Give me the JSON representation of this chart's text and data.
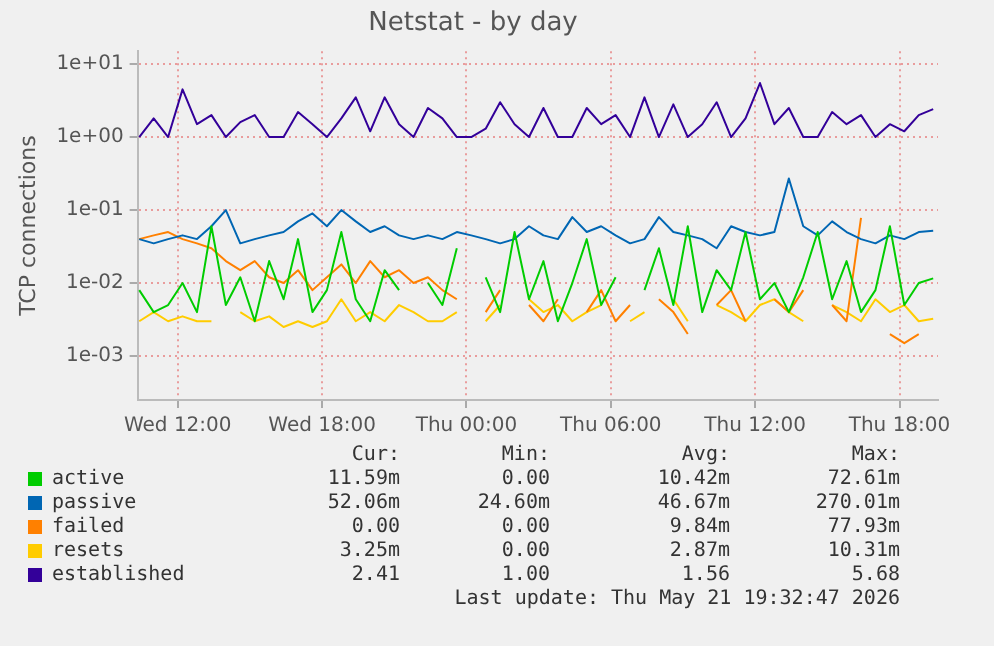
{
  "chart_data": {
    "type": "line",
    "title": "Netstat - by day",
    "ylabel": "TCP connections",
    "log": "y",
    "grid": true,
    "legend": "bottom",
    "marker": "none",
    "line_style": "solid",
    "xlim": [
      "2026-05-20T10:20",
      "2026-05-21T19:36"
    ],
    "xticks": [
      {
        "value": "2026-05-20T12:00",
        "label": "Wed 12:00"
      },
      {
        "value": "2026-05-20T18:00",
        "label": "Wed 18:00"
      },
      {
        "value": "2026-05-21T00:00",
        "label": "Thu 00:00"
      },
      {
        "value": "2026-05-21T06:00",
        "label": "Thu 06:00"
      },
      {
        "value": "2026-05-21T12:00",
        "label": "Thu 12:00"
      },
      {
        "value": "2026-05-21T18:00",
        "label": "Thu 18:00"
      }
    ],
    "ylim": [
      0.00025,
      15
    ],
    "yticks": [
      {
        "value": 0.001,
        "label": "1e-03"
      },
      {
        "value": 0.01,
        "label": "1e-02"
      },
      {
        "value": 0.1,
        "label": "1e-01"
      },
      {
        "value": 1,
        "label": "1e+00"
      },
      {
        "value": 10,
        "label": "1e+01"
      }
    ],
    "x": [
      "2026-05-20T10:24",
      "2026-05-20T11:00",
      "2026-05-20T11:36",
      "2026-05-20T12:12",
      "2026-05-20T12:48",
      "2026-05-20T13:24",
      "2026-05-20T14:00",
      "2026-05-20T14:36",
      "2026-05-20T15:12",
      "2026-05-20T15:48",
      "2026-05-20T16:24",
      "2026-05-20T17:00",
      "2026-05-20T17:36",
      "2026-05-20T18:12",
      "2026-05-20T18:48",
      "2026-05-20T19:24",
      "2026-05-20T20:00",
      "2026-05-20T20:36",
      "2026-05-20T21:12",
      "2026-05-20T21:48",
      "2026-05-20T22:24",
      "2026-05-20T23:00",
      "2026-05-20T23:36",
      "2026-05-21T00:12",
      "2026-05-21T00:48",
      "2026-05-21T01:24",
      "2026-05-21T02:00",
      "2026-05-21T02:36",
      "2026-05-21T03:12",
      "2026-05-21T03:48",
      "2026-05-21T04:24",
      "2026-05-21T05:00",
      "2026-05-21T05:36",
      "2026-05-21T06:12",
      "2026-05-21T06:48",
      "2026-05-21T07:24",
      "2026-05-21T08:00",
      "2026-05-21T08:36",
      "2026-05-21T09:12",
      "2026-05-21T09:48",
      "2026-05-21T10:24",
      "2026-05-21T11:00",
      "2026-05-21T11:36",
      "2026-05-21T12:12",
      "2026-05-21T12:48",
      "2026-05-21T13:24",
      "2026-05-21T14:00",
      "2026-05-21T14:36",
      "2026-05-21T15:12",
      "2026-05-21T15:48",
      "2026-05-21T16:24",
      "2026-05-21T17:00",
      "2026-05-21T17:36",
      "2026-05-21T18:12",
      "2026-05-21T18:48",
      "2026-05-21T19:24"
    ],
    "series": [
      {
        "name": "active",
        "color": "#00cc00",
        "values": [
          0.008,
          0.004,
          0.005,
          0.01,
          0.004,
          0.06,
          0.005,
          0.012,
          0.003,
          0.02,
          0.006,
          0.04,
          0.004,
          0.008,
          0.05,
          0.006,
          0.003,
          0.015,
          0.008,
          null,
          0.01,
          0.005,
          0.03,
          null,
          0.012,
          0.004,
          0.05,
          0.006,
          0.02,
          0.003,
          0.01,
          0.04,
          0.005,
          0.012,
          null,
          0.008,
          0.03,
          0.005,
          0.06,
          0.004,
          0.015,
          0.008,
          0.05,
          0.006,
          0.01,
          0.004,
          0.012,
          0.05,
          0.006,
          0.02,
          0.004,
          0.008,
          0.06,
          0.005,
          0.01,
          0.0116
        ]
      },
      {
        "name": "passive",
        "color": "#0066b3",
        "values": [
          0.04,
          0.035,
          0.04,
          0.045,
          0.04,
          0.06,
          0.1,
          0.035,
          0.04,
          0.045,
          0.05,
          0.07,
          0.09,
          0.06,
          0.1,
          0.07,
          0.05,
          0.06,
          0.045,
          0.04,
          0.045,
          0.04,
          0.05,
          0.045,
          0.04,
          0.035,
          0.04,
          0.06,
          0.045,
          0.04,
          0.08,
          0.05,
          0.06,
          0.045,
          0.035,
          0.04,
          0.08,
          0.05,
          0.045,
          0.04,
          0.03,
          0.06,
          0.05,
          0.045,
          0.05,
          0.27,
          0.06,
          0.045,
          0.07,
          0.05,
          0.04,
          0.035,
          0.045,
          0.04,
          0.05,
          0.052
        ]
      },
      {
        "name": "failed",
        "color": "#ff8000",
        "values": [
          0.04,
          0.045,
          0.05,
          0.04,
          0.035,
          0.03,
          0.02,
          0.015,
          0.02,
          0.012,
          0.01,
          0.015,
          0.008,
          0.012,
          0.018,
          0.01,
          0.02,
          0.012,
          0.015,
          0.01,
          0.012,
          0.008,
          0.006,
          null,
          0.004,
          0.008,
          null,
          0.005,
          0.003,
          0.006,
          null,
          0.004,
          0.008,
          0.003,
          0.005,
          null,
          0.006,
          0.004,
          0.002,
          null,
          0.005,
          0.008,
          0.003,
          null,
          0.006,
          0.004,
          0.008,
          null,
          0.005,
          0.003,
          0.078,
          null,
          0.002,
          0.0015,
          0.002,
          null
        ]
      },
      {
        "name": "resets",
        "color": "#ffcc00",
        "values": [
          0.003,
          0.004,
          0.003,
          0.0035,
          0.003,
          0.003,
          null,
          0.004,
          0.003,
          0.0035,
          0.0025,
          0.003,
          0.0025,
          0.003,
          0.006,
          0.003,
          0.004,
          0.003,
          0.005,
          0.004,
          0.003,
          0.003,
          0.004,
          null,
          0.003,
          0.005,
          null,
          0.006,
          0.004,
          0.005,
          0.003,
          0.004,
          0.005,
          null,
          0.003,
          0.004,
          null,
          0.006,
          0.003,
          null,
          0.005,
          0.004,
          0.003,
          0.005,
          0.006,
          0.004,
          0.003,
          null,
          0.005,
          0.004,
          0.003,
          0.006,
          0.004,
          0.005,
          0.003,
          0.00325
        ]
      },
      {
        "name": "established",
        "color": "#330099",
        "values": [
          1,
          1.8,
          1,
          4.5,
          1.5,
          2,
          1,
          1.6,
          2,
          1,
          1,
          2.2,
          1.5,
          1,
          1.8,
          3.5,
          1.2,
          3.5,
          1.5,
          1,
          2.5,
          1.8,
          1,
          1,
          1.3,
          3,
          1.5,
          1,
          2.5,
          1,
          1,
          2.5,
          1.5,
          2,
          1,
          3.5,
          1,
          2.8,
          1,
          1.5,
          3,
          1,
          1.8,
          5.5,
          1.5,
          2.5,
          1,
          1,
          2.2,
          1.5,
          2,
          1,
          1.5,
          1.2,
          2,
          2.41
        ]
      }
    ],
    "annotations": [
      "Cur:",
      "Min:",
      "Avg:",
      "Max:",
      "11.59m",
      "0.00",
      "10.42m",
      "72.61m",
      "52.06m",
      "24.60m",
      "46.67m",
      "270.01m",
      "0.00",
      "0.00",
      "9.84m",
      "77.93m",
      "3.25m",
      "0.00",
      "2.87m",
      "10.31m",
      "2.41",
      "1.00",
      "1.56",
      "5.68",
      "Last update: Thu May 21 19:32:47 2026"
    ]
  }
}
